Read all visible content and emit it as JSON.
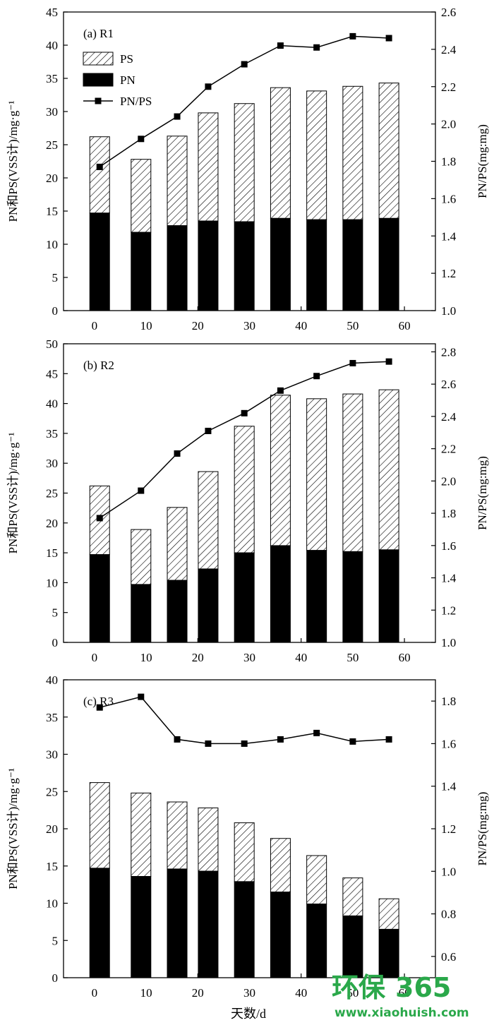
{
  "chart_data": [
    {
      "type": "bar",
      "panel_label": "(a) R1",
      "x_ticks": [
        0,
        10,
        20,
        30,
        40,
        50,
        60
      ],
      "xlim": [
        -6,
        66
      ],
      "days": [
        1,
        9,
        16,
        22,
        29,
        36,
        43,
        50,
        57
      ],
      "series": [
        {
          "name": "PS",
          "kind": "stacked-bar-top",
          "values": [
            11.5,
            11.0,
            13.5,
            16.3,
            17.8,
            19.7,
            19.4,
            20.1,
            20.4
          ]
        },
        {
          "name": "PN",
          "kind": "stacked-bar-bottom",
          "values": [
            14.7,
            11.8,
            12.8,
            13.5,
            13.4,
            13.9,
            13.7,
            13.7,
            13.9
          ]
        },
        {
          "name": "PN/PS",
          "kind": "line",
          "axis": "right",
          "values": [
            1.77,
            1.92,
            2.04,
            2.2,
            2.32,
            2.42,
            2.41,
            2.47,
            2.46
          ]
        }
      ],
      "ylim_left": [
        0,
        45
      ],
      "yticks_left": [
        0,
        5,
        10,
        15,
        20,
        25,
        30,
        35,
        40,
        45
      ],
      "ylim_right": [
        1.0,
        2.6
      ],
      "yticks_right": [
        "1.0",
        "1.2",
        "1.4",
        "1.6",
        "1.8",
        "2.0",
        "2.2",
        "2.4",
        "2.6"
      ],
      "ylabel_left": "PN和PS(VSS计)/mg·g⁻¹",
      "ylabel_right": "PN/PS(mg:mg)",
      "legend": {
        "placement": "top-left",
        "entries": [
          "PS",
          "PN",
          "PN/PS"
        ]
      }
    },
    {
      "type": "bar",
      "panel_label": "(b) R2",
      "x_ticks": [
        0,
        10,
        20,
        30,
        40,
        50,
        60
      ],
      "xlim": [
        -6,
        66
      ],
      "days": [
        1,
        9,
        16,
        22,
        29,
        36,
        43,
        50,
        57
      ],
      "series": [
        {
          "name": "PS",
          "kind": "stacked-bar-top",
          "values": [
            11.5,
            9.2,
            12.2,
            16.3,
            21.2,
            25.2,
            25.4,
            26.4,
            26.8
          ]
        },
        {
          "name": "PN",
          "kind": "stacked-bar-bottom",
          "values": [
            14.7,
            9.7,
            10.4,
            12.3,
            15.0,
            16.2,
            15.4,
            15.2,
            15.5
          ]
        },
        {
          "name": "PN/PS",
          "kind": "line",
          "axis": "right",
          "values": [
            1.77,
            1.94,
            2.17,
            2.31,
            2.42,
            2.56,
            2.65,
            2.73,
            2.74
          ]
        }
      ],
      "ylim_left": [
        0,
        50
      ],
      "yticks_left": [
        0,
        5,
        10,
        15,
        20,
        25,
        30,
        35,
        40,
        45,
        50
      ],
      "ylim_right": [
        1.0,
        2.85
      ],
      "yticks_right": [
        "1.0",
        "1.2",
        "1.4",
        "1.6",
        "1.8",
        "2.0",
        "2.2",
        "2.4",
        "2.6",
        "2.8"
      ],
      "ylabel_left": "PN和PS(VSS计)/mg·g⁻¹",
      "ylabel_right": "PN/PS(mg:mg)"
    },
    {
      "type": "bar",
      "panel_label": "(c) R3",
      "x_ticks": [
        0,
        10,
        20,
        30,
        40,
        50,
        60
      ],
      "xlim": [
        -6,
        66
      ],
      "days": [
        1,
        9,
        16,
        22,
        29,
        36,
        43,
        50,
        57
      ],
      "series": [
        {
          "name": "PS",
          "kind": "stacked-bar-top",
          "values": [
            11.5,
            11.2,
            9.0,
            8.5,
            7.9,
            7.2,
            6.5,
            5.1,
            4.1
          ]
        },
        {
          "name": "PN",
          "kind": "stacked-bar-bottom",
          "values": [
            14.7,
            13.6,
            14.6,
            14.3,
            12.9,
            11.5,
            9.9,
            8.3,
            6.5
          ]
        },
        {
          "name": "PN/PS",
          "kind": "line",
          "axis": "right",
          "values": [
            1.77,
            1.82,
            1.62,
            1.6,
            1.6,
            1.62,
            1.65,
            1.61,
            1.62
          ]
        }
      ],
      "ylim_left": [
        0,
        40
      ],
      "yticks_left": [
        0,
        5,
        10,
        15,
        20,
        25,
        30,
        35,
        40
      ],
      "ylim_right": [
        0.5,
        1.9
      ],
      "yticks_right": [
        "0.6",
        "0.8",
        "1.0",
        "1.2",
        "1.4",
        "1.6",
        "1.8"
      ],
      "ylabel_left": "PN和PS(VSS计)/mg·g⁻¹",
      "ylabel_right": "PN/PS(mg:mg)",
      "xlabel": "天数/d"
    }
  ],
  "watermark": {
    "brand": "环保",
    "number": "365",
    "url": "www.xiaohuish.com",
    "color": "#2aa84a"
  }
}
